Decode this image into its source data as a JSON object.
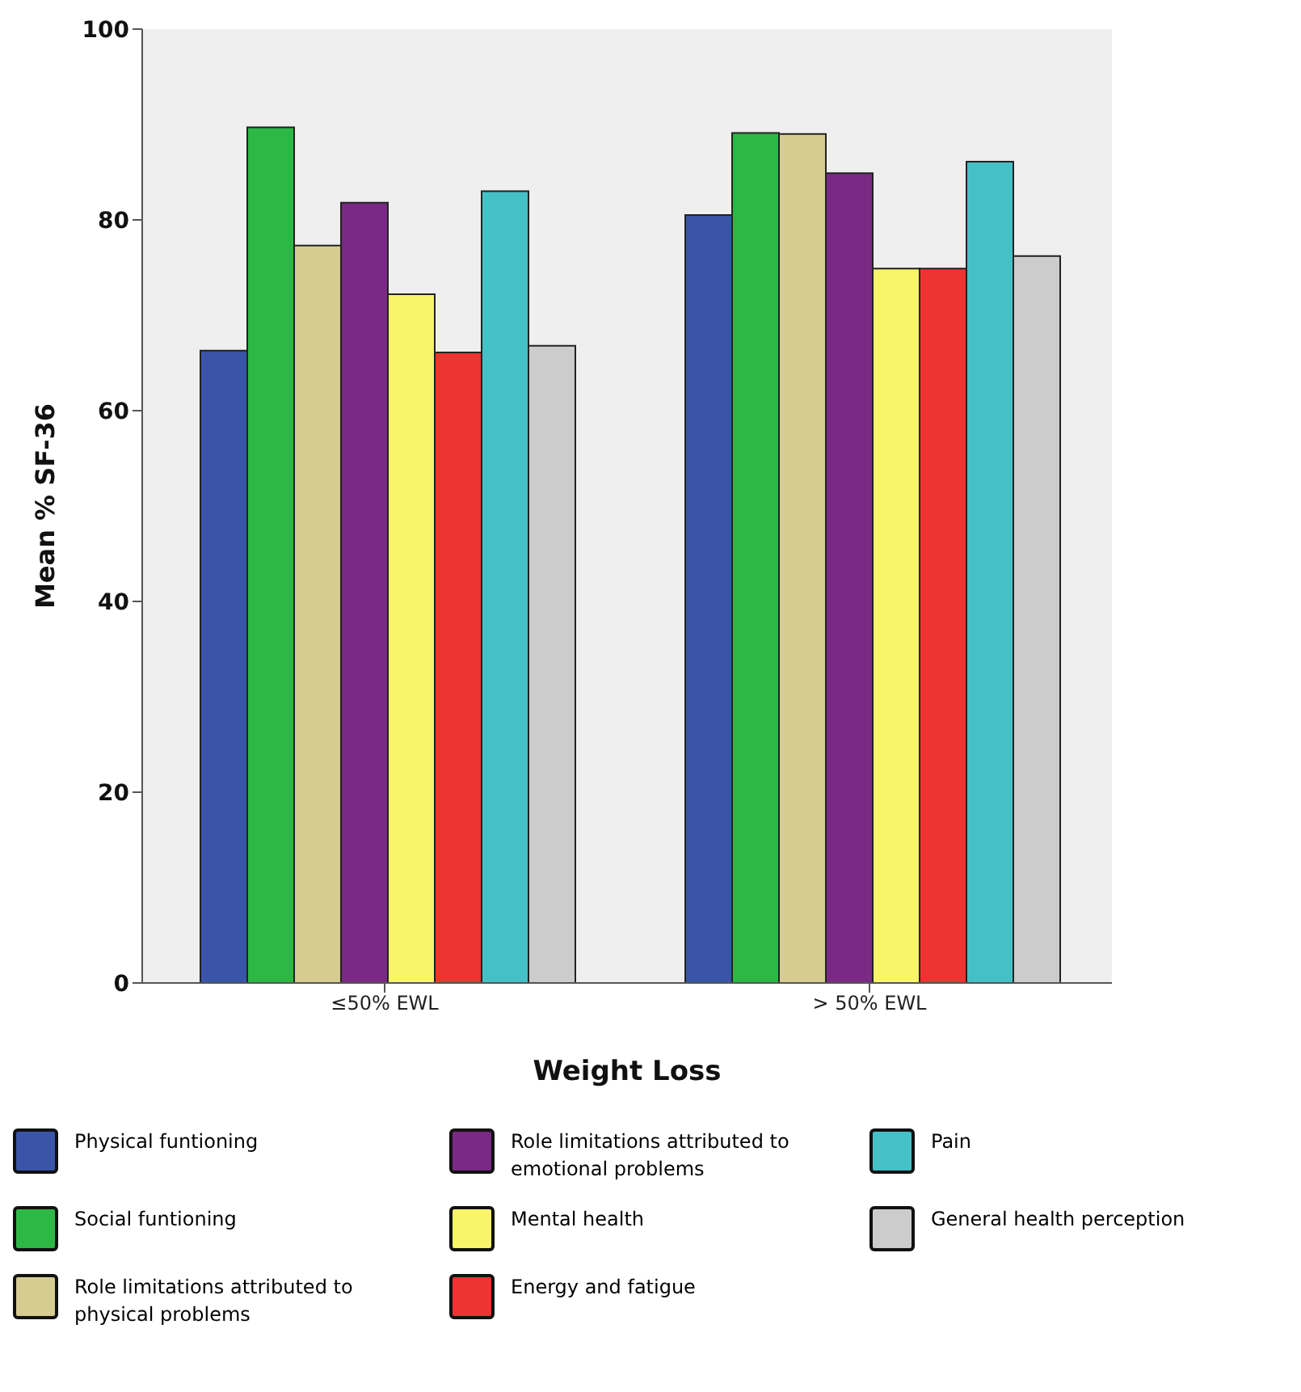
{
  "chart_data": {
    "type": "bar",
    "xlabel": "Weight Loss",
    "ylabel": "Mean % SF-36",
    "categories": [
      "≤50% EWL",
      "> 50% EWL"
    ],
    "series": [
      {
        "name": "Physical funtioning",
        "color": "#3a55a8",
        "values": [
          66.3,
          80.5
        ]
      },
      {
        "name": "Social funtioning",
        "color": "#2db845",
        "values": [
          89.7,
          89.1
        ]
      },
      {
        "name": "Role limitations attributed to physical problems",
        "color": "#d6cc90",
        "values": [
          77.3,
          89.0
        ]
      },
      {
        "name": "Role limitations attributed to emotional problems",
        "color": "#7a2a84",
        "values": [
          81.8,
          84.9
        ]
      },
      {
        "name": "Mental health",
        "color": "#f8f56a",
        "values": [
          72.2,
          74.9
        ]
      },
      {
        "name": "Energy and fatigue",
        "color": "#ee3333",
        "values": [
          66.1,
          74.9
        ]
      },
      {
        "name": "Pain",
        "color": "#45c0c6",
        "values": [
          83.0,
          86.1
        ]
      },
      {
        "name": "General health perception",
        "color": "#cccccc",
        "values": [
          66.8,
          76.2
        ]
      }
    ],
    "ylim": [
      0,
      100
    ],
    "yticks": [
      0,
      20,
      40,
      60,
      80,
      100
    ],
    "legend": "bottom"
  }
}
